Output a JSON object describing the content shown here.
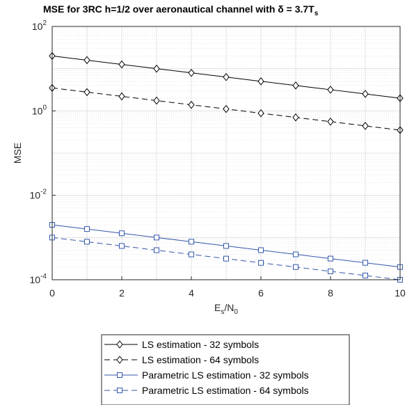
{
  "chart_data": {
    "type": "line",
    "title": "MSE for 3RC h=1/2 over aeronautical channel with δ = 3.7T",
    "title_subscript": "s",
    "xlabel_main": "E",
    "xlabel_sub1": "s",
    "xlabel_mid": "/N",
    "xlabel_sub2": "0",
    "ylabel": "MSE",
    "xlim": [
      0,
      10
    ],
    "ylim": [
      0.0001,
      100
    ],
    "yscale": "log",
    "grid": "on (major and minor)",
    "x_ticks": [
      "0",
      "2",
      "4",
      "6",
      "8",
      "10"
    ],
    "y_ticks": [
      {
        "base": "10",
        "exp": "-4"
      },
      {
        "base": "10",
        "exp": "-2"
      },
      {
        "base": "10",
        "exp": "0"
      },
      {
        "base": "10",
        "exp": "2"
      }
    ],
    "legend_position": "below plot",
    "x": [
      0,
      1,
      2,
      3,
      4,
      5,
      6,
      7,
      8,
      9,
      10
    ],
    "series": [
      {
        "name": "LS estimation - 32 symbols",
        "color": "#000000",
        "dash": "solid",
        "marker": "diamond",
        "values": [
          20,
          15.9,
          12.6,
          10,
          7.96,
          6.32,
          5.02,
          3.99,
          3.17,
          2.52,
          2.0
        ]
      },
      {
        "name": "LS estimation - 64 symbols",
        "color": "#000000",
        "dash": "dashed",
        "marker": "diamond",
        "values": [
          3.5,
          2.78,
          2.21,
          1.75,
          1.39,
          1.11,
          0.88,
          0.7,
          0.556,
          0.441,
          0.35
        ]
      },
      {
        "name": "Parametric LS estimation - 32 symbols",
        "color": "#3355aa",
        "dash": "solid",
        "marker": "square",
        "values": [
          0.002,
          0.00159,
          0.00126,
          0.001,
          0.000796,
          0.000632,
          0.000502,
          0.000399,
          0.000317,
          0.000252,
          0.0002
        ]
      },
      {
        "name": "Parametric LS estimation - 64 symbols",
        "color": "#3355aa",
        "dash": "dashed",
        "marker": "square",
        "values": [
          0.001,
          0.000794,
          0.000631,
          0.000501,
          0.000398,
          0.000316,
          0.000251,
          0.0002,
          0.000158,
          0.000126,
          0.0001
        ]
      }
    ]
  }
}
